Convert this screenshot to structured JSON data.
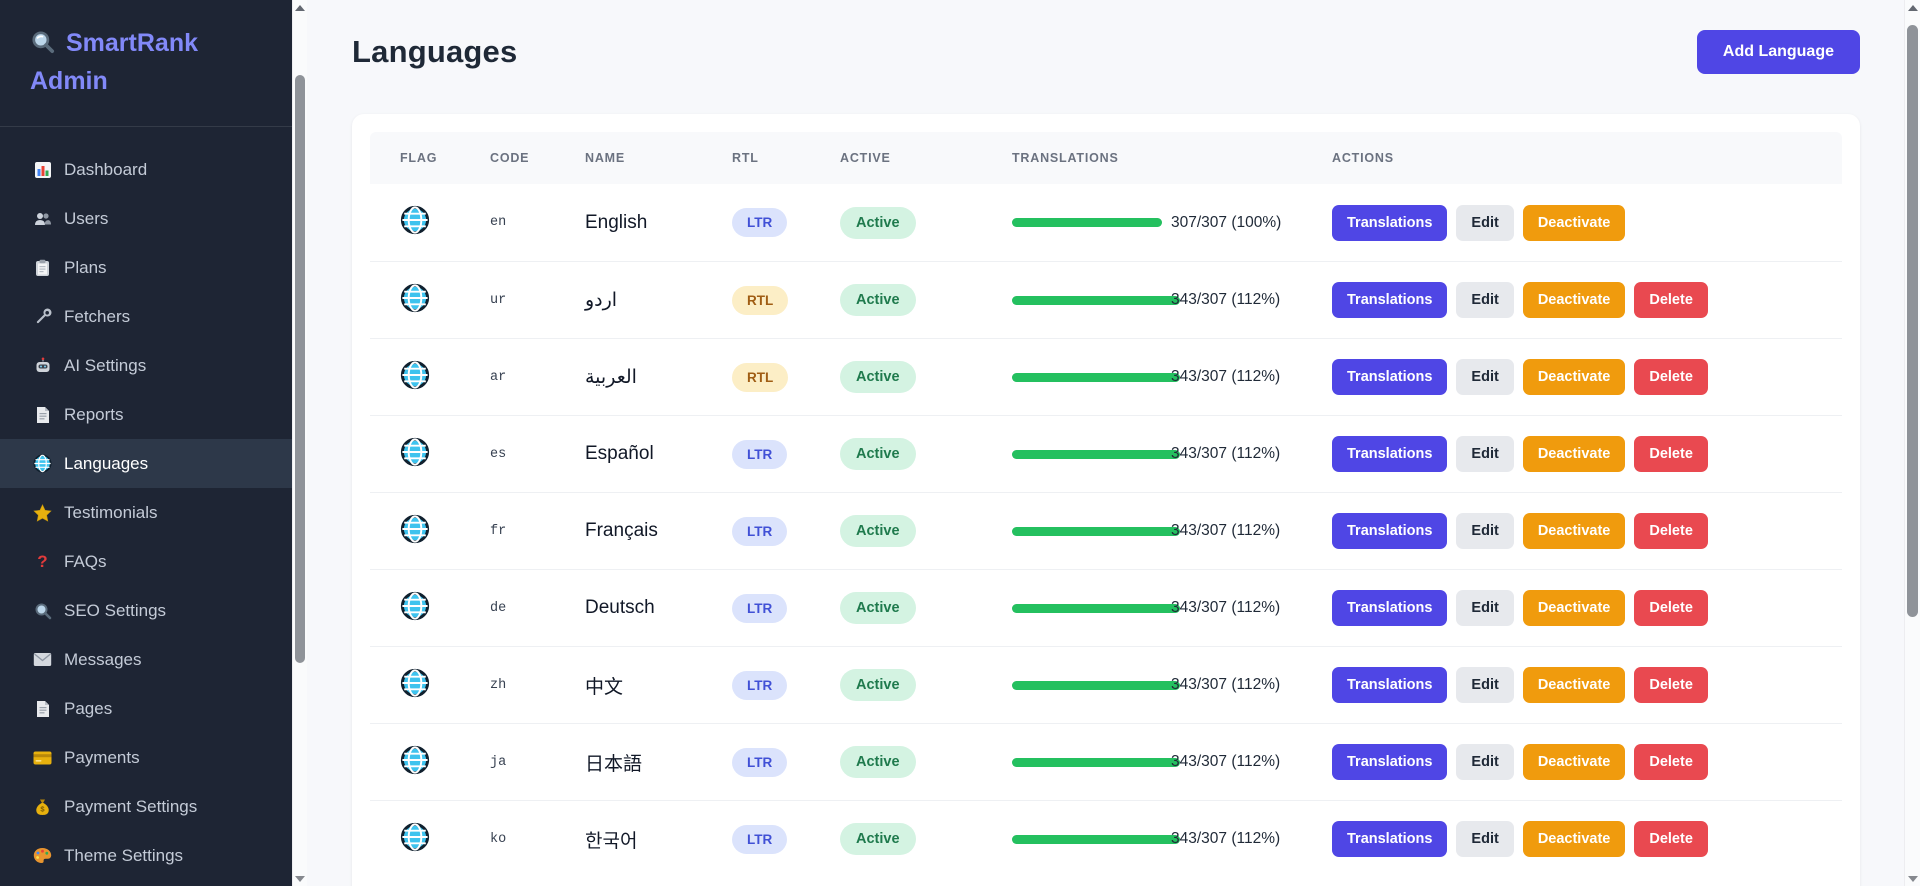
{
  "app": {
    "title": "SmartRank Admin"
  },
  "sidebar": {
    "items": [
      {
        "label": "Dashboard",
        "icon": "bar-chart-icon",
        "active": false
      },
      {
        "label": "Users",
        "icon": "users-icon",
        "active": false
      },
      {
        "label": "Plans",
        "icon": "clipboard-icon",
        "active": false
      },
      {
        "label": "Fetchers",
        "icon": "wrench-icon",
        "active": false
      },
      {
        "label": "AI Settings",
        "icon": "robot-icon",
        "active": false
      },
      {
        "label": "Reports",
        "icon": "document-icon",
        "active": false
      },
      {
        "label": "Languages",
        "icon": "globe-icon",
        "active": true
      },
      {
        "label": "Testimonials",
        "icon": "star-icon",
        "active": false
      },
      {
        "label": "FAQs",
        "icon": "question-mark-icon",
        "active": false
      },
      {
        "label": "SEO Settings",
        "icon": "magnifier-icon",
        "active": false
      },
      {
        "label": "Messages",
        "icon": "envelope-icon",
        "active": false
      },
      {
        "label": "Pages",
        "icon": "page-icon",
        "active": false
      },
      {
        "label": "Payments",
        "icon": "credit-card-icon",
        "active": false
      },
      {
        "label": "Payment Settings",
        "icon": "money-bag-icon",
        "active": false
      },
      {
        "label": "Theme Settings",
        "icon": "palette-icon",
        "active": false
      }
    ]
  },
  "header": {
    "title": "Languages",
    "add_button_label": "Add Language"
  },
  "table": {
    "columns": [
      "FLAG",
      "CODE",
      "NAME",
      "RTL",
      "ACTIVE",
      "TRANSLATIONS",
      "ACTIONS"
    ],
    "rows": [
      {
        "code": "en",
        "name": "English",
        "direction": "LTR",
        "status": "Active",
        "translations_label": "307/307 (100%)",
        "progress_pct": 100,
        "actions": [
          "Translations",
          "Edit",
          "Deactivate"
        ]
      },
      {
        "code": "ur",
        "name": "اردو",
        "direction": "RTL",
        "status": "Active",
        "translations_label": "343/307 (112%)",
        "progress_pct": 112,
        "actions": [
          "Translations",
          "Edit",
          "Deactivate",
          "Delete"
        ]
      },
      {
        "code": "ar",
        "name": "العربية",
        "direction": "RTL",
        "status": "Active",
        "translations_label": "343/307 (112%)",
        "progress_pct": 112,
        "actions": [
          "Translations",
          "Edit",
          "Deactivate",
          "Delete"
        ]
      },
      {
        "code": "es",
        "name": "Español",
        "direction": "LTR",
        "status": "Active",
        "translations_label": "343/307 (112%)",
        "progress_pct": 112,
        "actions": [
          "Translations",
          "Edit",
          "Deactivate",
          "Delete"
        ]
      },
      {
        "code": "fr",
        "name": "Français",
        "direction": "LTR",
        "status": "Active",
        "translations_label": "343/307 (112%)",
        "progress_pct": 112,
        "actions": [
          "Translations",
          "Edit",
          "Deactivate",
          "Delete"
        ]
      },
      {
        "code": "de",
        "name": "Deutsch",
        "direction": "LTR",
        "status": "Active",
        "translations_label": "343/307 (112%)",
        "progress_pct": 112,
        "actions": [
          "Translations",
          "Edit",
          "Deactivate",
          "Delete"
        ]
      },
      {
        "code": "zh",
        "name": "中文",
        "direction": "LTR",
        "status": "Active",
        "translations_label": "343/307 (112%)",
        "progress_pct": 112,
        "actions": [
          "Translations",
          "Edit",
          "Deactivate",
          "Delete"
        ]
      },
      {
        "code": "ja",
        "name": "日本語",
        "direction": "LTR",
        "status": "Active",
        "translations_label": "343/307 (112%)",
        "progress_pct": 112,
        "actions": [
          "Translations",
          "Edit",
          "Deactivate",
          "Delete"
        ]
      },
      {
        "code": "ko",
        "name": "한국어",
        "direction": "LTR",
        "status": "Active",
        "translations_label": "343/307 (112%)",
        "progress_pct": 112,
        "actions": [
          "Translations",
          "Edit",
          "Deactivate",
          "Delete"
        ]
      }
    ],
    "action_styles": {
      "Translations": "primary",
      "Edit": "neutral",
      "Deactivate": "warning",
      "Delete": "danger"
    }
  },
  "colors": {
    "sidebar_bg": "#1e2534",
    "accent": "#4f46e5",
    "progress_green": "#24c05f",
    "warning": "#f09b0d",
    "danger": "#e94950",
    "logo": "#8289f8"
  }
}
